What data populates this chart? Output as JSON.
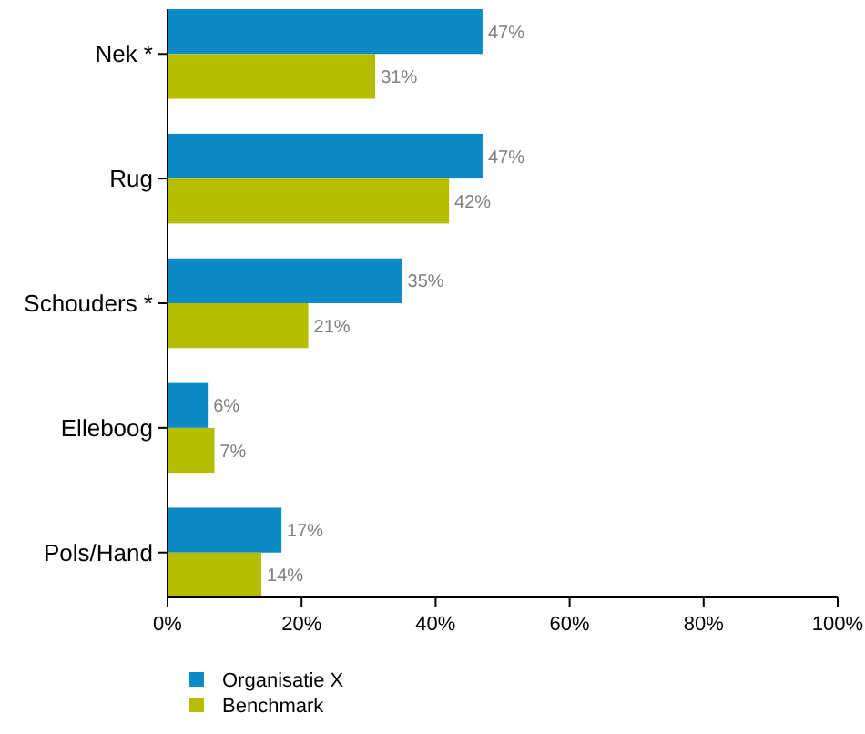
{
  "chart_data": {
    "type": "bar",
    "orientation": "horizontal",
    "categories": [
      "Nek *",
      "Rug",
      "Schouders *",
      "Elleboog",
      "Pols/Hand"
    ],
    "series": [
      {
        "name": "Organisatie X",
        "color": "#0a8bc6",
        "values": [
          47,
          47,
          35,
          6,
          17
        ],
        "value_labels": [
          "47%",
          "47%",
          "35%",
          "6%",
          "17%"
        ]
      },
      {
        "name": "Benchmark",
        "color": "#b4bd00",
        "values": [
          31,
          42,
          21,
          7,
          14
        ],
        "value_labels": [
          "31%",
          "42%",
          "21%",
          "7%",
          "14%"
        ]
      }
    ],
    "xlim": [
      0,
      100
    ],
    "xticks": [
      {
        "value": 0,
        "label": "0%"
      },
      {
        "value": 20,
        "label": "20%"
      },
      {
        "value": 40,
        "label": "40%"
      },
      {
        "value": 60,
        "label": "60%"
      },
      {
        "value": 80,
        "label": "80%"
      },
      {
        "value": 100,
        "label": "100%"
      }
    ],
    "grid": false,
    "legend": "bottom"
  }
}
